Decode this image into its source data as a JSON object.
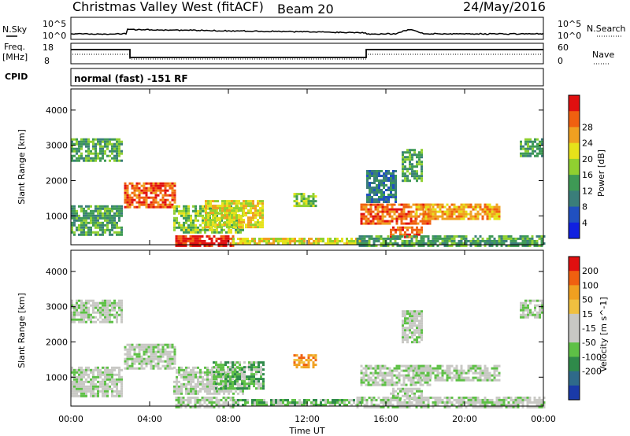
{
  "header": {
    "site": "Christmas Valley West (fitACF)",
    "beam": "Beam 20",
    "date": "24/May/2016"
  },
  "params": {
    "nsky_label": "N.Sky",
    "nsky_hi": "10^5",
    "nsky_lo": "10^0",
    "nsearch_label": "N.Search",
    "freq_label_1": "Freq.",
    "freq_label_2": "[MHz]",
    "freq_hi": "18",
    "freq_lo": "8",
    "nave_label": "Nave",
    "nave_hi": "60",
    "nave_lo": "0",
    "cpid_label": "CPID",
    "cpid_value": "normal (fast) -151 RF"
  },
  "chart_data": [
    {
      "type": "heatmap",
      "name": "power",
      "ylabel": "Slant Range [km]",
      "yticks": [
        1000,
        2000,
        3000,
        4000
      ],
      "ylim": [
        180,
        4600
      ],
      "xlabel": "Time UT",
      "xticks": [
        "00:00",
        "04:00",
        "08:00",
        "12:00",
        "16:00",
        "20:00",
        "00:00"
      ],
      "xlim_hours": [
        0,
        24
      ],
      "colorbar": {
        "label": "Power [dB]",
        "ticks": [
          4,
          8,
          12,
          16,
          20,
          24,
          28
        ],
        "colors": [
          "#1020e0",
          "#2050c0",
          "#3a7e7a",
          "#3e9a55",
          "#90d030",
          "#e6e21a",
          "#f0a020",
          "#f06010",
          "#e01010"
        ]
      },
      "regions": [
        {
          "t0": 0.0,
          "t1": 2.6,
          "r0": 2550,
          "r1": 3200,
          "level": 3
        },
        {
          "t0": 0.0,
          "t1": 2.6,
          "r0": 450,
          "r1": 1300,
          "level": 3
        },
        {
          "t0": 2.7,
          "t1": 5.3,
          "r0": 1250,
          "r1": 1950,
          "level": 7
        },
        {
          "t0": 5.2,
          "t1": 8.8,
          "r0": 500,
          "r1": 1300,
          "level": 4
        },
        {
          "t0": 6.8,
          "t1": 9.8,
          "r0": 700,
          "r1": 1450,
          "level": 5
        },
        {
          "t0": 5.3,
          "t1": 8.2,
          "r0": 180,
          "r1": 450,
          "level": 8
        },
        {
          "t0": 8.2,
          "t1": 14.8,
          "r0": 180,
          "r1": 380,
          "level": 5
        },
        {
          "t0": 14.7,
          "t1": 18.3,
          "r0": 750,
          "r1": 1350,
          "level": 7
        },
        {
          "t0": 16.2,
          "t1": 17.8,
          "r0": 380,
          "r1": 700,
          "level": 7
        },
        {
          "t0": 17.5,
          "t1": 21.8,
          "r0": 900,
          "r1": 1350,
          "level": 6
        },
        {
          "t0": 14.5,
          "t1": 24.0,
          "r0": 180,
          "r1": 450,
          "level": 3
        },
        {
          "t0": 15.0,
          "t1": 16.5,
          "r0": 1400,
          "r1": 2300,
          "level": 2
        },
        {
          "t0": 16.8,
          "t1": 17.8,
          "r0": 2000,
          "r1": 2900,
          "level": 3
        },
        {
          "t0": 22.8,
          "t1": 24.0,
          "r0": 2700,
          "r1": 3200,
          "level": 3
        },
        {
          "t0": 11.3,
          "t1": 12.4,
          "r0": 1300,
          "r1": 1650,
          "level": 4
        }
      ]
    },
    {
      "type": "heatmap",
      "name": "velocity",
      "ylabel": "Slant Range [km]",
      "yticks": [
        1000,
        2000,
        3000,
        4000
      ],
      "ylim": [
        180,
        4600
      ],
      "xlabel": "Time UT",
      "xticks": [
        "00:00",
        "04:00",
        "08:00",
        "12:00",
        "16:00",
        "20:00",
        "00:00"
      ],
      "xlim_hours": [
        0,
        24
      ],
      "colorbar": {
        "label": "Velocity [m s^-1]",
        "ticks": [
          200,
          100,
          50,
          15,
          -15,
          -50,
          -100,
          -200
        ],
        "colors": [
          "#1a3aa8",
          "#2f6a8a",
          "#2f8a4a",
          "#5ec046",
          "#c8c8c4",
          "#c8c8c4",
          "#f0c040",
          "#f0a020",
          "#f06010",
          "#e01010"
        ]
      },
      "regions": [
        {
          "t0": 0.0,
          "t1": 2.6,
          "r0": 2550,
          "r1": 3200,
          "level": 4
        },
        {
          "t0": 0.0,
          "t1": 2.6,
          "r0": 450,
          "r1": 1300,
          "level": 4
        },
        {
          "t0": 2.7,
          "t1": 5.3,
          "r0": 1250,
          "r1": 1950,
          "level": 4
        },
        {
          "t0": 5.2,
          "t1": 8.8,
          "r0": 500,
          "r1": 1300,
          "level": 4
        },
        {
          "t0": 7.2,
          "t1": 9.8,
          "r0": 700,
          "r1": 1450,
          "level": 3
        },
        {
          "t0": 5.3,
          "t1": 8.2,
          "r0": 180,
          "r1": 450,
          "level": 4
        },
        {
          "t0": 8.2,
          "t1": 14.8,
          "r0": 180,
          "r1": 380,
          "level": 3
        },
        {
          "t0": 14.7,
          "t1": 18.3,
          "r0": 750,
          "r1": 1350,
          "level": 4
        },
        {
          "t0": 16.2,
          "t1": 17.8,
          "r0": 380,
          "r1": 700,
          "level": 4
        },
        {
          "t0": 17.5,
          "t1": 21.8,
          "r0": 900,
          "r1": 1350,
          "level": 4
        },
        {
          "t0": 14.5,
          "t1": 24.0,
          "r0": 180,
          "r1": 450,
          "level": 4
        },
        {
          "t0": 16.8,
          "t1": 17.8,
          "r0": 2000,
          "r1": 2900,
          "level": 4
        },
        {
          "t0": 22.8,
          "t1": 24.0,
          "r0": 2700,
          "r1": 3200,
          "level": 4
        },
        {
          "t0": 11.3,
          "t1": 12.4,
          "r0": 1300,
          "r1": 1650,
          "level": 7
        }
      ]
    }
  ]
}
